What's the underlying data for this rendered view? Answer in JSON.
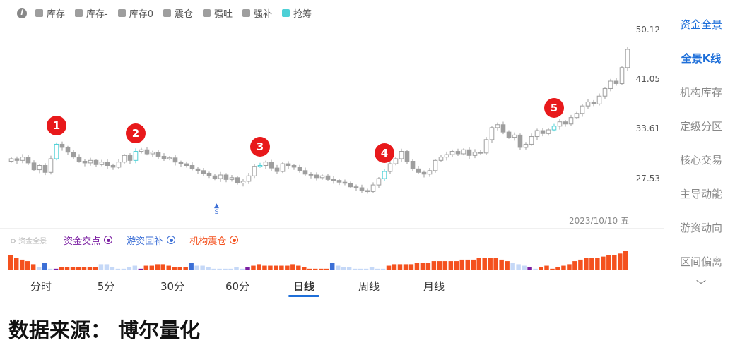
{
  "legend": {
    "info_icon": "info-icon",
    "items": [
      {
        "label": "库存",
        "color": "#9e9e9e"
      },
      {
        "label": "库存-",
        "color": "#9e9e9e"
      },
      {
        "label": "库存0",
        "color": "#9e9e9e"
      },
      {
        "label": "震仓",
        "color": "#9e9e9e"
      },
      {
        "label": "强吐",
        "color": "#9e9e9e"
      },
      {
        "label": "强补",
        "color": "#9e9e9e"
      },
      {
        "label": "抢筹",
        "color": "#4dd0d6"
      }
    ]
  },
  "price_axis": {
    "labels": [
      "50.12",
      "41.05",
      "33.61",
      "27.53"
    ],
    "scale": "log"
  },
  "date_label": "2023/10/10 五",
  "signal_marker": "S",
  "markers": [
    "1",
    "2",
    "3",
    "4",
    "5"
  ],
  "colors": {
    "candle": "#9e9e9e",
    "highlight": "#4dd0d6",
    "marker": "#e8191b",
    "orange": "#f4511e",
    "light_blue": "#c5d8f7",
    "blue": "#3c6fd6",
    "purple": "#7b1fa2",
    "accent": "#1e6fd9"
  },
  "chart_data": {
    "type": "candlestick",
    "closes": [
      29.8,
      29.6,
      30.0,
      29.3,
      28.5,
      29.0,
      28.2,
      29.8,
      31.6,
      31.2,
      30.6,
      30.0,
      29.5,
      29.3,
      29.6,
      29.1,
      29.4,
      29.0,
      28.8,
      29.4,
      30.2,
      29.6,
      30.7,
      30.9,
      30.4,
      30.6,
      30.1,
      29.8,
      29.9,
      29.4,
      29.2,
      29.0,
      28.6,
      28.4,
      28.1,
      27.8,
      27.5,
      27.9,
      27.4,
      27.6,
      27.0,
      27.2,
      27.8,
      28.9,
      29.0,
      29.4,
      28.7,
      28.3,
      29.2,
      29.0,
      28.8,
      28.4,
      28.0,
      27.9,
      27.6,
      27.8,
      27.4,
      27.3,
      27.1,
      27.0,
      26.6,
      26.5,
      26.2,
      26.1,
      26.8,
      27.5,
      28.3,
      29.2,
      29.8,
      30.7,
      29.5,
      28.6,
      28.2,
      28.0,
      28.4,
      29.6,
      30.0,
      30.3,
      30.7,
      30.4,
      30.9,
      30.2,
      30.6,
      30.5,
      32.2,
      33.8,
      34.2,
      33.2,
      32.5,
      32.8,
      31.2,
      31.6,
      32.6,
      33.4,
      33.0,
      33.5,
      34.0,
      34.6,
      34.3,
      35.2,
      35.8,
      36.9,
      37.5,
      37.2,
      38.4,
      39.6,
      40.8,
      40.4,
      43.1,
      46.4
    ],
    "highlight_indices": [
      8,
      22,
      44,
      66,
      96
    ],
    "marker_indices": [
      8,
      22,
      44,
      66,
      96
    ],
    "yticks": [
      50.12,
      41.05,
      33.61,
      27.53
    ]
  },
  "indicator": {
    "title": "资金全景",
    "series": [
      {
        "label": "资金交点",
        "color": "#7b1fa2"
      },
      {
        "label": "游资回补",
        "color": "#3c6fd6"
      },
      {
        "label": "机构震仓",
        "color": "#f4511e"
      }
    ],
    "bar_codes": "OOOOOLBLPOOOOOOOLLLLLLLPOOOOOOOOBLLLLLLLLLPOOOOOOOOOOOOOOBLLLLLLLLLOOOOOOOOOOOOOOOOOOOOOOLLLPLOOOOOOOOOOOOOOO",
    "bar_values": [
      10,
      8,
      7,
      6,
      4,
      2,
      5,
      1,
      1,
      2,
      2,
      2,
      2,
      2,
      2,
      2,
      4,
      4,
      2,
      1,
      1,
      2,
      3,
      1,
      3,
      3,
      4,
      4,
      3,
      2,
      2,
      2,
      5,
      3,
      3,
      2,
      1,
      1,
      1,
      1,
      2,
      1,
      2,
      3,
      4,
      3,
      3,
      3,
      3,
      3,
      4,
      3,
      2,
      1,
      1,
      1,
      1,
      5,
      3,
      2,
      2,
      1,
      1,
      1,
      2,
      1,
      1,
      3,
      4,
      4,
      4,
      4,
      5,
      5,
      5,
      6,
      6,
      6,
      6,
      6,
      7,
      7,
      7,
      8,
      8,
      8,
      8,
      7,
      6,
      5,
      4,
      3,
      2,
      1,
      2,
      3,
      1,
      2,
      3,
      4,
      6,
      7,
      8,
      8,
      8,
      9,
      10,
      10,
      11,
      13
    ]
  },
  "sidebar": {
    "items": [
      {
        "label": "资金全景",
        "active": true
      },
      {
        "label": "全景K线",
        "active": true
      },
      {
        "label": "机构库存"
      },
      {
        "label": "定级分区"
      },
      {
        "label": "核心交易"
      },
      {
        "label": "主导动能"
      },
      {
        "label": "游资动向"
      },
      {
        "label": "区间偏离"
      }
    ],
    "more_icon": "chevron-down-icon"
  },
  "tabs": [
    {
      "label": "分时"
    },
    {
      "label": "5分"
    },
    {
      "label": "30分"
    },
    {
      "label": "60分"
    },
    {
      "label": "日线",
      "active": true
    },
    {
      "label": "周线"
    },
    {
      "label": "月线"
    }
  ],
  "footer": "数据来源： 博尔量化"
}
